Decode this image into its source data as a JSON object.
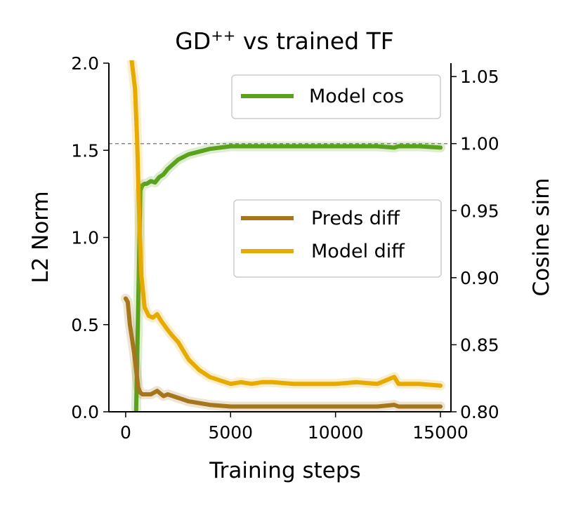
{
  "chart_data": {
    "type": "line",
    "title": {
      "base": "GD",
      "sup": "++",
      "rest": " vs trained TF"
    },
    "xlabel": "Training steps",
    "ylabel_left": "L2 Norm",
    "ylabel_right": "Cosine sim",
    "xlim": [
      -800,
      15500
    ],
    "ylim_left": [
      0,
      2.0
    ],
    "ylim_right": [
      0.8,
      1.06
    ],
    "xticks": [
      "0",
      "5000",
      "10000",
      "15000"
    ],
    "yticks_left": [
      "0.0",
      "0.5",
      "1.0",
      "1.5",
      "2.0"
    ],
    "yticks_right": [
      "0.80",
      "0.85",
      "0.90",
      "0.95",
      "1.00",
      "1.05"
    ],
    "reference_line": {
      "axis": "right",
      "y": 1.0
    },
    "grid": false,
    "legends": [
      {
        "placement": "upper-right",
        "entries": [
          {
            "name": "Model cos",
            "color": "#5aa11e"
          }
        ]
      },
      {
        "placement": "center-right",
        "entries": [
          {
            "name": "Preds diff",
            "color": "#a5761c"
          },
          {
            "name": "Model diff",
            "color": "#e6aa00"
          }
        ]
      }
    ],
    "series": [
      {
        "name": "Model cos",
        "axis": "right",
        "color": "#5aa11e",
        "x": [
          350,
          500,
          600,
          700,
          800,
          900,
          1000,
          1200,
          1400,
          1600,
          1800,
          2000,
          2500,
          3000,
          3500,
          4000,
          4500,
          5000,
          6000,
          7000,
          8000,
          9000,
          10000,
          11000,
          12000,
          12800,
          13000,
          14000,
          15000
        ],
        "y": [
          0.78,
          0.8,
          0.88,
          0.965,
          0.969,
          0.97,
          0.97,
          0.972,
          0.971,
          0.975,
          0.977,
          0.981,
          0.988,
          0.992,
          0.994,
          0.996,
          0.997,
          0.998,
          0.998,
          0.998,
          0.998,
          0.998,
          0.998,
          0.998,
          0.998,
          0.997,
          0.998,
          0.998,
          0.997
        ]
      },
      {
        "name": "Preds diff",
        "axis": "left",
        "color": "#a5761c",
        "x": [
          0,
          100,
          200,
          300,
          400,
          500,
          600,
          700,
          800,
          1000,
          1200,
          1500,
          1800,
          2000,
          2500,
          3000,
          3500,
          4000,
          5000,
          6000,
          7000,
          8000,
          9000,
          10000,
          11000,
          12000,
          12800,
          13000,
          14000,
          15000
        ],
        "y": [
          0.65,
          0.63,
          0.5,
          0.42,
          0.34,
          0.24,
          0.14,
          0.11,
          0.1,
          0.1,
          0.1,
          0.12,
          0.09,
          0.1,
          0.08,
          0.06,
          0.05,
          0.04,
          0.03,
          0.03,
          0.03,
          0.03,
          0.03,
          0.03,
          0.03,
          0.03,
          0.04,
          0.03,
          0.03,
          0.03
        ]
      },
      {
        "name": "Model diff",
        "axis": "left",
        "color": "#e6aa00",
        "x": [
          250,
          350,
          450,
          550,
          650,
          750,
          900,
          1100,
          1300,
          1500,
          1700,
          2000,
          2200,
          2500,
          3000,
          3500,
          4000,
          4500,
          5000,
          5500,
          6000,
          6500,
          7000,
          8000,
          9000,
          10000,
          11000,
          12000,
          12800,
          13000,
          14000,
          15000
        ],
        "y": [
          2.05,
          1.95,
          1.85,
          1.55,
          1.1,
          0.78,
          0.6,
          0.55,
          0.54,
          0.56,
          0.52,
          0.47,
          0.44,
          0.4,
          0.3,
          0.24,
          0.2,
          0.18,
          0.16,
          0.17,
          0.16,
          0.17,
          0.17,
          0.16,
          0.16,
          0.16,
          0.17,
          0.16,
          0.2,
          0.16,
          0.16,
          0.15
        ]
      }
    ]
  }
}
